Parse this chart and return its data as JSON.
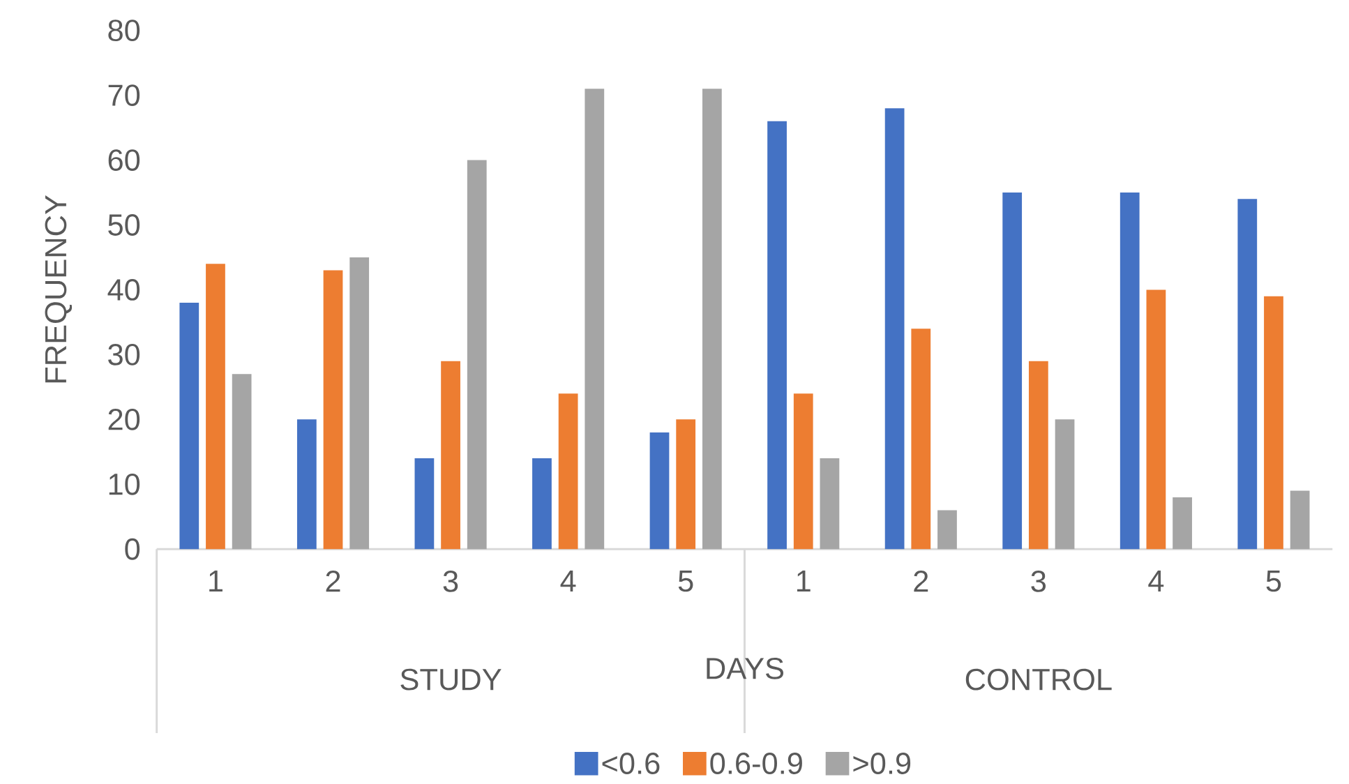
{
  "chart_data": {
    "type": "bar",
    "xlabel": "DAYS",
    "ylabel": "FREQUENCY",
    "categories": [
      "1",
      "2",
      "3",
      "4",
      "5",
      "1",
      "2",
      "3",
      "4",
      "5"
    ],
    "annotations": [
      "STUDY",
      "CONTROL"
    ],
    "series": [
      {
        "name": "<0.6",
        "color": "#4472c4",
        "values": [
          38,
          20,
          14,
          14,
          18,
          66,
          68,
          55,
          55,
          54
        ]
      },
      {
        "name": "0.6-0.9",
        "color": "#ed7d31",
        "values": [
          44,
          43,
          29,
          24,
          20,
          24,
          34,
          29,
          40,
          39
        ]
      },
      {
        "name": ">0.9",
        "color": "#a5a5a5",
        "values": [
          27,
          45,
          60,
          71,
          71,
          14,
          6,
          20,
          8,
          9
        ]
      }
    ],
    "ylim": [
      0,
      80
    ],
    "yticks": [
      0,
      10,
      20,
      30,
      40,
      50,
      60,
      70,
      80
    ],
    "legend": "bottom"
  }
}
